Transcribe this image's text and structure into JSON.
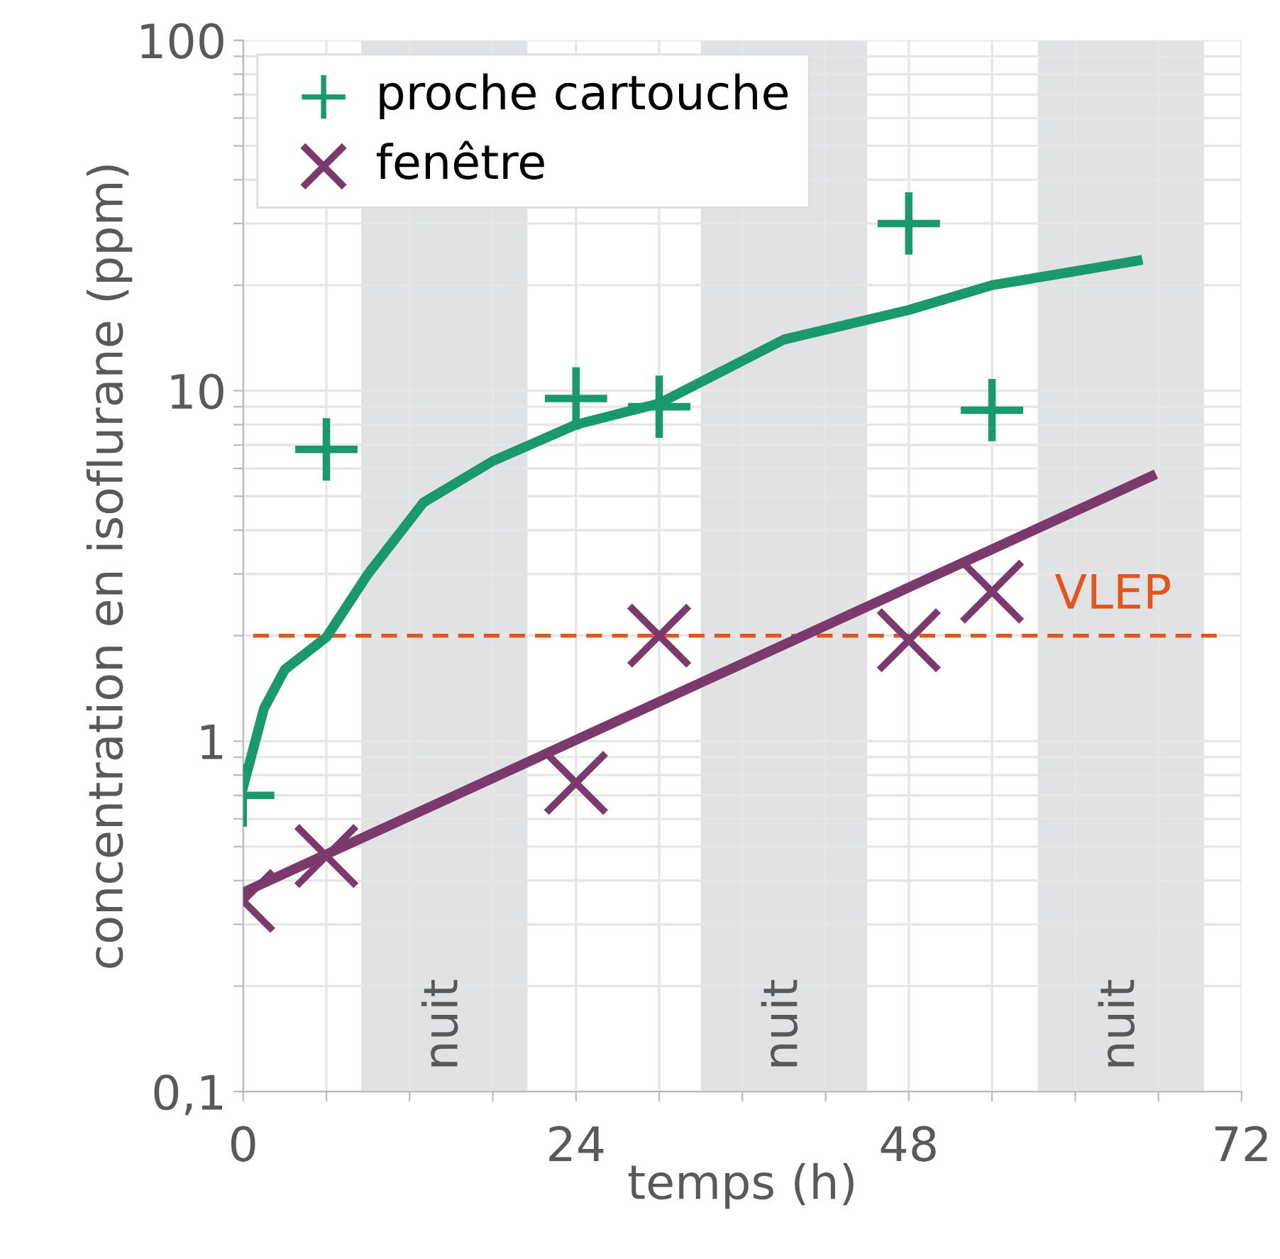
{
  "chart_data": {
    "type": "scatter",
    "xlabel": "temps (h)",
    "ylabel": "concentration en isoflurane (ppm)",
    "log": "y",
    "grid": true,
    "legend": "top left",
    "xlim": [
      0,
      72
    ],
    "xticks": [
      0,
      {
        "value": 6,
        "label": null
      },
      {
        "value": 12,
        "label": null
      },
      {
        "value": 18,
        "label": null
      },
      24,
      {
        "value": 30,
        "label": null
      },
      {
        "value": 36,
        "label": null
      },
      {
        "value": 42,
        "label": null
      },
      48,
      {
        "value": 54,
        "label": null
      },
      {
        "value": 60,
        "label": null
      },
      {
        "value": 66,
        "label": null
      },
      72
    ],
    "ylim": [
      0.1,
      100
    ],
    "yticks": [
      {
        "value": 0.1,
        "label": "0,1"
      },
      {
        "value": 0.2,
        "label": null
      },
      {
        "value": 0.3,
        "label": null
      },
      {
        "value": 0.4,
        "label": null
      },
      {
        "value": 0.5,
        "label": null
      },
      {
        "value": 0.6,
        "label": null
      },
      {
        "value": 0.7,
        "label": null
      },
      {
        "value": 0.8,
        "label": null
      },
      {
        "value": 0.9,
        "label": null
      },
      1,
      {
        "value": 2,
        "label": null
      },
      {
        "value": 3,
        "label": null
      },
      {
        "value": 4,
        "label": null
      },
      {
        "value": 5,
        "label": null
      },
      {
        "value": 6,
        "label": null
      },
      {
        "value": 7,
        "label": null
      },
      {
        "value": 8,
        "label": null
      },
      {
        "value": 9,
        "label": null
      },
      10,
      {
        "value": 20,
        "label": null
      },
      {
        "value": 30,
        "label": null
      },
      {
        "value": 40,
        "label": null
      },
      {
        "value": 50,
        "label": null
      },
      {
        "value": 60,
        "label": null
      },
      {
        "value": 70,
        "label": null
      },
      {
        "value": 80,
        "label": null
      },
      {
        "value": 90,
        "label": null
      },
      100
    ],
    "series": [
      {
        "name": "proche cartouche",
        "marker": "cross",
        "color": "#1a9a6c",
        "x": [
          0,
          6,
          24,
          30,
          48,
          54
        ],
        "values": [
          0.7,
          6.8,
          9.5,
          9.0,
          30,
          8.8
        ]
      },
      {
        "name": "fenêtre",
        "marker": "cross",
        "color": "#7b3a6b",
        "x": [
          0,
          6,
          24,
          30,
          48,
          54
        ],
        "values": [
          0.35,
          0.47,
          0.76,
          2.0,
          1.94,
          2.67
        ]
      },
      {
        "type": "line",
        "marker": "none",
        "line_style": "solid",
        "color": "#1a9a6c",
        "x": [
          0,
          1.5,
          3,
          6,
          9,
          13,
          18,
          24,
          30,
          39,
          48,
          54,
          64.5
        ],
        "values": [
          0.74,
          1.24,
          1.6,
          1.98,
          3.0,
          4.8,
          6.3,
          8.0,
          9.2,
          14,
          17,
          20,
          23.5
        ]
      },
      {
        "type": "line",
        "marker": "none",
        "line_style": "solid",
        "color": "#7b3a6b",
        "x": [
          0,
          65.5
        ],
        "values": [
          0.37,
          5.7
        ]
      }
    ],
    "ref_lines": [
      {
        "axis": "y",
        "value": 2,
        "label": "VLEP",
        "color": "#e0561c",
        "line_style": "dashed"
      }
    ],
    "bands": [
      {
        "axis": "x",
        "from": 8.5,
        "to": 20.5,
        "label": "nuit",
        "color": "#e1e2e4"
      },
      {
        "axis": "x",
        "from": 33,
        "to": 45,
        "label": "nuit",
        "color": "#e1e2e4"
      },
      {
        "axis": "x",
        "from": 57.3,
        "to": 69.3,
        "label": "nuit",
        "color": "#e1e2e4"
      }
    ]
  }
}
